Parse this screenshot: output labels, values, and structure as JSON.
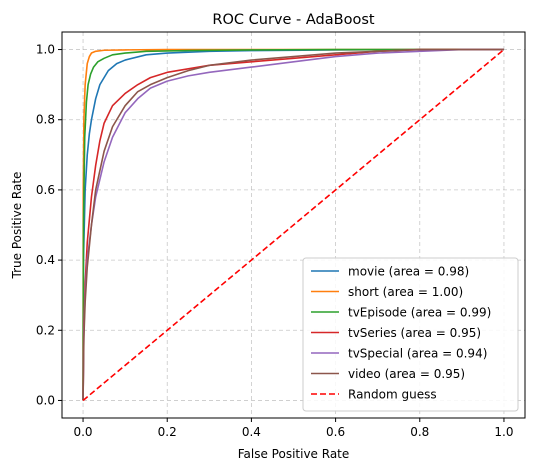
{
  "chart_data": {
    "type": "line",
    "title": "ROC Curve - AdaBoost",
    "xlabel": "False Positive Rate",
    "ylabel": "True Positive Rate",
    "xlim": [
      -0.05,
      1.05
    ],
    "ylim": [
      -0.05,
      1.05
    ],
    "xticks": [
      0.0,
      0.2,
      0.4,
      0.6,
      0.8,
      1.0
    ],
    "yticks": [
      0.0,
      0.2,
      0.4,
      0.6,
      0.8,
      1.0
    ],
    "xtick_labels": [
      "0.0",
      "0.2",
      "0.4",
      "0.6",
      "0.8",
      "1.0"
    ],
    "ytick_labels": [
      "0.0",
      "0.2",
      "0.4",
      "0.6",
      "0.8",
      "1.0"
    ],
    "grid": true,
    "legend_position": "lower-right",
    "series": [
      {
        "name": "movie (area = 0.98)",
        "color": "#1f77b4",
        "dash": "solid",
        "x": [
          0,
          0.001,
          0.005,
          0.01,
          0.015,
          0.02,
          0.03,
          0.04,
          0.05,
          0.06,
          0.08,
          0.1,
          0.15,
          0.2,
          0.3,
          0.4,
          0.6,
          0.8,
          1.0
        ],
        "y": [
          0,
          0.4,
          0.6,
          0.7,
          0.76,
          0.8,
          0.86,
          0.9,
          0.92,
          0.94,
          0.96,
          0.97,
          0.985,
          0.99,
          0.995,
          0.997,
          0.999,
          1.0,
          1.0
        ]
      },
      {
        "name": "short (area = 1.00)",
        "color": "#ff7f0e",
        "dash": "solid",
        "x": [
          0,
          0.0005,
          0.002,
          0.005,
          0.01,
          0.015,
          0.02,
          0.03,
          0.05,
          0.1,
          0.2,
          0.5,
          1.0
        ],
        "y": [
          0,
          0.6,
          0.8,
          0.9,
          0.96,
          0.98,
          0.99,
          0.995,
          0.998,
          0.999,
          1.0,
          1.0,
          1.0
        ]
      },
      {
        "name": "tvEpisode (area = 0.99)",
        "color": "#2ca02c",
        "dash": "solid",
        "x": [
          0,
          0.001,
          0.004,
          0.008,
          0.012,
          0.018,
          0.025,
          0.035,
          0.05,
          0.07,
          0.1,
          0.15,
          0.25,
          0.4,
          0.6,
          0.8,
          1.0
        ],
        "y": [
          0,
          0.5,
          0.75,
          0.85,
          0.9,
          0.93,
          0.95,
          0.965,
          0.975,
          0.985,
          0.99,
          0.995,
          0.997,
          0.999,
          1.0,
          1.0,
          1.0
        ]
      },
      {
        "name": "tvSeries (area = 0.95)",
        "color": "#d62728",
        "dash": "solid",
        "x": [
          0,
          0.002,
          0.005,
          0.01,
          0.02,
          0.03,
          0.04,
          0.05,
          0.07,
          0.1,
          0.13,
          0.16,
          0.2,
          0.25,
          0.3,
          0.4,
          0.5,
          0.6,
          0.7,
          0.8,
          0.9,
          1.0
        ],
        "y": [
          0,
          0.22,
          0.33,
          0.45,
          0.58,
          0.67,
          0.74,
          0.79,
          0.84,
          0.875,
          0.9,
          0.92,
          0.935,
          0.945,
          0.955,
          0.965,
          0.975,
          0.985,
          0.995,
          1.0,
          1.0,
          1.0
        ]
      },
      {
        "name": "tvSpecial (area = 0.94)",
        "color": "#9467bd",
        "dash": "solid",
        "x": [
          0,
          0.002,
          0.005,
          0.01,
          0.02,
          0.03,
          0.05,
          0.07,
          0.1,
          0.13,
          0.16,
          0.2,
          0.25,
          0.3,
          0.4,
          0.5,
          0.6,
          0.7,
          0.8,
          0.9,
          1.0
        ],
        "y": [
          0,
          0.2,
          0.3,
          0.4,
          0.5,
          0.58,
          0.68,
          0.75,
          0.82,
          0.86,
          0.89,
          0.91,
          0.925,
          0.935,
          0.95,
          0.965,
          0.98,
          0.99,
          0.995,
          1.0,
          1.0
        ]
      },
      {
        "name": "video (area = 0.95)",
        "color": "#8c564b",
        "dash": "solid",
        "x": [
          0,
          0.002,
          0.005,
          0.01,
          0.02,
          0.03,
          0.05,
          0.07,
          0.1,
          0.13,
          0.16,
          0.2,
          0.25,
          0.3,
          0.4,
          0.5,
          0.6,
          0.7,
          0.8,
          0.9,
          1.0
        ],
        "y": [
          0,
          0.18,
          0.28,
          0.38,
          0.5,
          0.6,
          0.71,
          0.78,
          0.84,
          0.88,
          0.9,
          0.92,
          0.94,
          0.955,
          0.97,
          0.98,
          0.99,
          0.995,
          1.0,
          1.0,
          1.0
        ]
      },
      {
        "name": "Random guess",
        "color": "#ff0000",
        "dash": "dashed",
        "x": [
          0,
          1
        ],
        "y": [
          0,
          1
        ]
      }
    ]
  }
}
